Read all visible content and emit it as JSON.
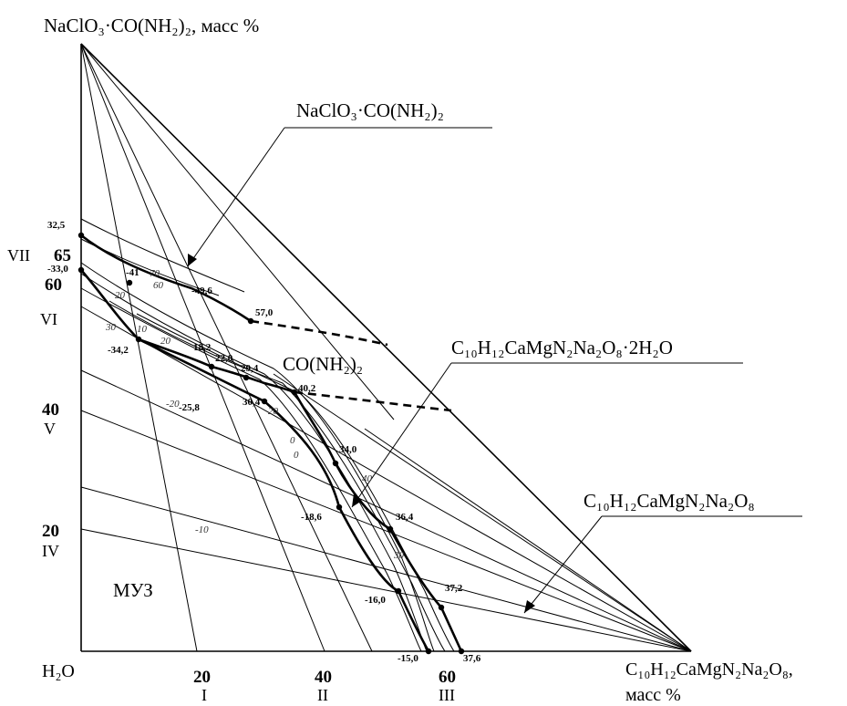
{
  "vertices": {
    "top": "NaClO₃·CO(NH₂)₂, масс %",
    "bottom_left": "H₂O",
    "bottom_right_line1": "C₁₀H₁₂CaMgN₂Na₂O₈,",
    "bottom_right_line2": "масс %"
  },
  "x_ticks": [
    {
      "value": "20",
      "roman": "I"
    },
    {
      "value": "40",
      "roman": "II"
    },
    {
      "value": "60",
      "roman": "III"
    }
  ],
  "y_ticks": [
    {
      "value": "20",
      "roman": "IV"
    },
    {
      "value": "40",
      "roman": "V"
    },
    {
      "value": "60",
      "roman": "VI"
    },
    {
      "value": "65",
      "roman": "VII"
    }
  ],
  "phase_labels": {
    "chlorate_urea": "NaClO₃·CO(NH₂)₂",
    "urea": "CO(NH₂)₂",
    "hydrate": "C₁₀H₁₂CaMgN₂Na₂O₈·2H₂O",
    "anhydrous": "C₁₀H₁₂CaMgN₂Na₂O₈",
    "ice": "МУЗ"
  },
  "point_labels": {
    "p325": "32,5",
    "p330": "-33,0",
    "p41": "-41",
    "p496": "-49,6",
    "p570": "57,0",
    "p342": "-34,2",
    "p182": "18,2",
    "p220": "22,0",
    "p294": "29,4",
    "p402": "40,2",
    "p258": "-25,8",
    "p304": "30,4",
    "p340": "34,0",
    "p186": "-18,6",
    "p364": "36,4",
    "p160": "-16,0",
    "p372": "37,2",
    "p150": "-15,0",
    "p376": "37,6"
  },
  "isotherm_labels": {
    "i70": "70",
    "i60": "60",
    "i20a": "20",
    "i30": "30",
    "i10a": "10",
    "i20b": "20",
    "i20c": "-20",
    "i20d": "20",
    "i0a": "0",
    "i0b": "0",
    "i40": "40",
    "i30b": "30",
    "i10b": "-10"
  }
}
